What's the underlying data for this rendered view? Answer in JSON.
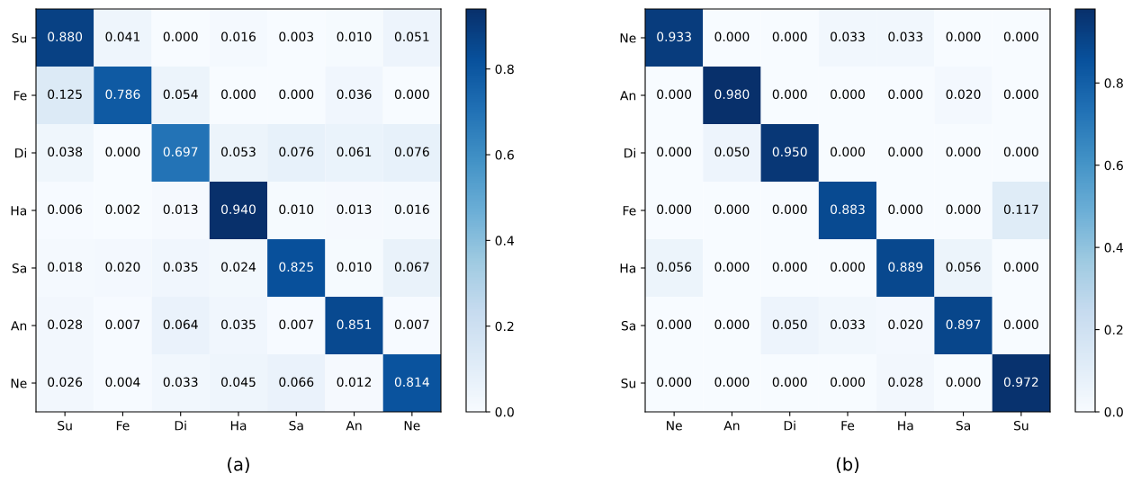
{
  "chart_data": [
    {
      "type": "heatmap",
      "title": "(a)",
      "categories": [
        "Su",
        "Fe",
        "Di",
        "Ha",
        "Sa",
        "An",
        "Ne"
      ],
      "y_categories": [
        "Su",
        "Fe",
        "Di",
        "Ha",
        "Sa",
        "An",
        "Ne"
      ],
      "cells": [
        [
          0.88,
          0.041,
          0.0,
          0.016,
          0.003,
          0.01,
          0.051
        ],
        [
          0.125,
          0.786,
          0.054,
          0.0,
          0.0,
          0.036,
          0.0
        ],
        [
          0.038,
          0.0,
          0.697,
          0.053,
          0.076,
          0.061,
          0.076
        ],
        [
          0.006,
          0.002,
          0.013,
          0.94,
          0.01,
          0.013,
          0.016
        ],
        [
          0.018,
          0.02,
          0.035,
          0.024,
          0.825,
          0.01,
          0.067
        ],
        [
          0.028,
          0.007,
          0.064,
          0.035,
          0.007,
          0.851,
          0.007
        ],
        [
          0.026,
          0.004,
          0.033,
          0.045,
          0.066,
          0.012,
          0.814
        ]
      ],
      "cell_labels": [
        [
          "0.880",
          "0.041",
          "0.000",
          "0.016",
          "0.003",
          "0.010",
          "0.051"
        ],
        [
          "0.125",
          "0.786",
          "0.054",
          "0.000",
          "0.000",
          "0.036",
          "0.000"
        ],
        [
          "0.038",
          "0.000",
          "0.697",
          "0.053",
          "0.076",
          "0.061",
          "0.076"
        ],
        [
          "0.006",
          "0.002",
          "0.013",
          "0.940",
          "0.010",
          "0.013",
          "0.016"
        ],
        [
          "0.018",
          "0.020",
          "0.035",
          "0.024",
          "0.825",
          "0.010",
          "0.067"
        ],
        [
          "0.028",
          "0.007",
          "0.064",
          "0.035",
          "0.007",
          "0.851",
          "0.007"
        ],
        [
          "0.026",
          "0.004",
          "0.033",
          "0.045",
          "0.066",
          "0.012",
          "0.814"
        ]
      ],
      "clim": [
        0,
        0.94
      ],
      "cticks": [
        {
          "value": 0,
          "label": "0.0"
        },
        {
          "value": 0.2,
          "label": "0.2"
        },
        {
          "value": 0.4,
          "label": "0.4"
        },
        {
          "value": 0.6,
          "label": "0.6"
        },
        {
          "value": 0.8,
          "label": "0.8"
        }
      ]
    },
    {
      "type": "heatmap",
      "title": "(b)",
      "categories": [
        "Ne",
        "An",
        "Di",
        "Fe",
        "Ha",
        "Sa",
        "Su"
      ],
      "y_categories": [
        "Ne",
        "An",
        "Di",
        "Fe",
        "Ha",
        "Sa",
        "Su"
      ],
      "cells": [
        [
          0.933,
          0.0,
          0.0,
          0.033,
          0.033,
          0.0,
          0.0
        ],
        [
          0.0,
          0.98,
          0.0,
          0.0,
          0.0,
          0.02,
          0.0
        ],
        [
          0.0,
          0.05,
          0.95,
          0.0,
          0.0,
          0.0,
          0.0
        ],
        [
          0.0,
          0.0,
          0.0,
          0.883,
          0.0,
          0.0,
          0.117
        ],
        [
          0.056,
          0.0,
          0.0,
          0.0,
          0.889,
          0.056,
          0.0
        ],
        [
          0.0,
          0.0,
          0.05,
          0.033,
          0.02,
          0.897,
          0.0
        ],
        [
          0.0,
          0.0,
          0.0,
          0.0,
          0.028,
          0.0,
          0.972
        ]
      ],
      "cell_labels": [
        [
          "0.933",
          "0.000",
          "0.000",
          "0.033",
          "0.033",
          "0.000",
          "0.000"
        ],
        [
          "0.000",
          "0.980",
          "0.000",
          "0.000",
          "0.000",
          "0.020",
          "0.000"
        ],
        [
          "0.000",
          "0.050",
          "0.950",
          "0.000",
          "0.000",
          "0.000",
          "0.000"
        ],
        [
          "0.000",
          "0.000",
          "0.000",
          "0.883",
          "0.000",
          "0.000",
          "0.117"
        ],
        [
          "0.056",
          "0.000",
          "0.000",
          "0.000",
          "0.889",
          "0.056",
          "0.000"
        ],
        [
          "0.000",
          "0.000",
          "0.050",
          "0.033",
          "0.020",
          "0.897",
          "0.000"
        ],
        [
          "0.000",
          "0.000",
          "0.000",
          "0.000",
          "0.028",
          "0.000",
          "0.972"
        ]
      ],
      "clim": [
        0,
        0.98
      ],
      "cticks": [
        {
          "value": 0,
          "label": "0.0"
        },
        {
          "value": 0.2,
          "label": "0.2"
        },
        {
          "value": 0.4,
          "label": "0.4"
        },
        {
          "value": 0.6,
          "label": "0.6"
        },
        {
          "value": 0.8,
          "label": "0.8"
        }
      ]
    }
  ]
}
